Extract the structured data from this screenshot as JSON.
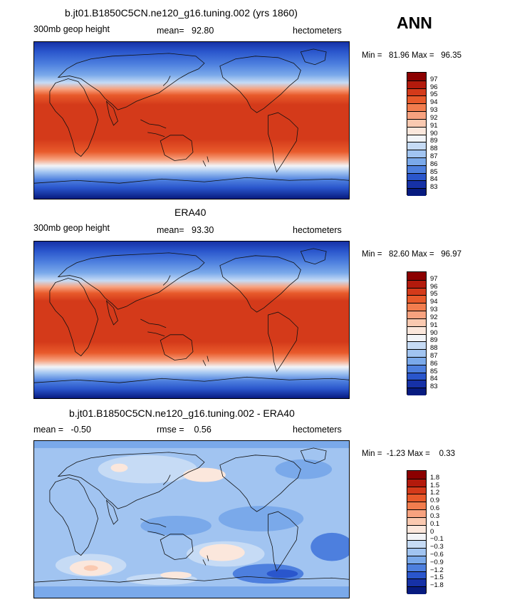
{
  "season": "ANN",
  "panels": [
    {
      "title": "b.jt01.B1850C5CN.ne120_g16.tuning.002 (yrs 1860)",
      "left_label": "300mb geop height",
      "center_label": "mean=   92.80",
      "units": "hectometers",
      "minmax": "Min =   81.96 Max =   96.35",
      "colorbar": {
        "labels": [
          "97",
          "96",
          "95",
          "94",
          "93",
          "92",
          "91",
          "90",
          "89",
          "88",
          "87",
          "86",
          "85",
          "84",
          "83"
        ],
        "colors": [
          "#8b0000",
          "#b31a0c",
          "#d43a1a",
          "#e85a2b",
          "#f27d4e",
          "#f7a27f",
          "#fac9b0",
          "#fbe7dc",
          "#f2f4f8",
          "#c6dbf5",
          "#a1c4f1",
          "#7aa9ea",
          "#4d7fde",
          "#2a56cc",
          "#1631a6",
          "#071b80"
        ]
      }
    },
    {
      "title": "ERA40",
      "left_label": "300mb geop height",
      "center_label": "mean=   93.30",
      "units": "hectometers",
      "minmax": "Min =   82.60 Max =   96.97",
      "colorbar": {
        "labels": [
          "97",
          "96",
          "95",
          "94",
          "93",
          "92",
          "91",
          "90",
          "89",
          "88",
          "87",
          "86",
          "85",
          "84",
          "83"
        ],
        "colors": [
          "#8b0000",
          "#b31a0c",
          "#d43a1a",
          "#e85a2b",
          "#f27d4e",
          "#f7a27f",
          "#fac9b0",
          "#fbe7dc",
          "#f2f4f8",
          "#c6dbf5",
          "#a1c4f1",
          "#7aa9ea",
          "#4d7fde",
          "#2a56cc",
          "#1631a6",
          "#071b80"
        ]
      }
    },
    {
      "title": "b.jt01.B1850C5CN.ne120_g16.tuning.002 - ERA40",
      "left_label": "mean =   -0.50",
      "center_label": "rmse =    0.56",
      "units": "hectometers",
      "minmax": "Min =  -1.23 Max =    0.33",
      "colorbar": {
        "labels": [
          "1.8",
          "1.5",
          "1.2",
          "0.9",
          "0.6",
          "0.3",
          "0.1",
          "0",
          "−0.1",
          "−0.3",
          "−0.6",
          "−0.9",
          "−1.2",
          "−1.5",
          "−1.8"
        ],
        "colors": [
          "#8b0000",
          "#b31a0c",
          "#d43a1a",
          "#e85a2b",
          "#f27d4e",
          "#f7a27f",
          "#fac9b0",
          "#fbe7dc",
          "#f2f4f8",
          "#c6dbf5",
          "#a1c4f1",
          "#7aa9ea",
          "#4d7fde",
          "#2a56cc",
          "#1631a6",
          "#071b80"
        ]
      }
    }
  ]
}
